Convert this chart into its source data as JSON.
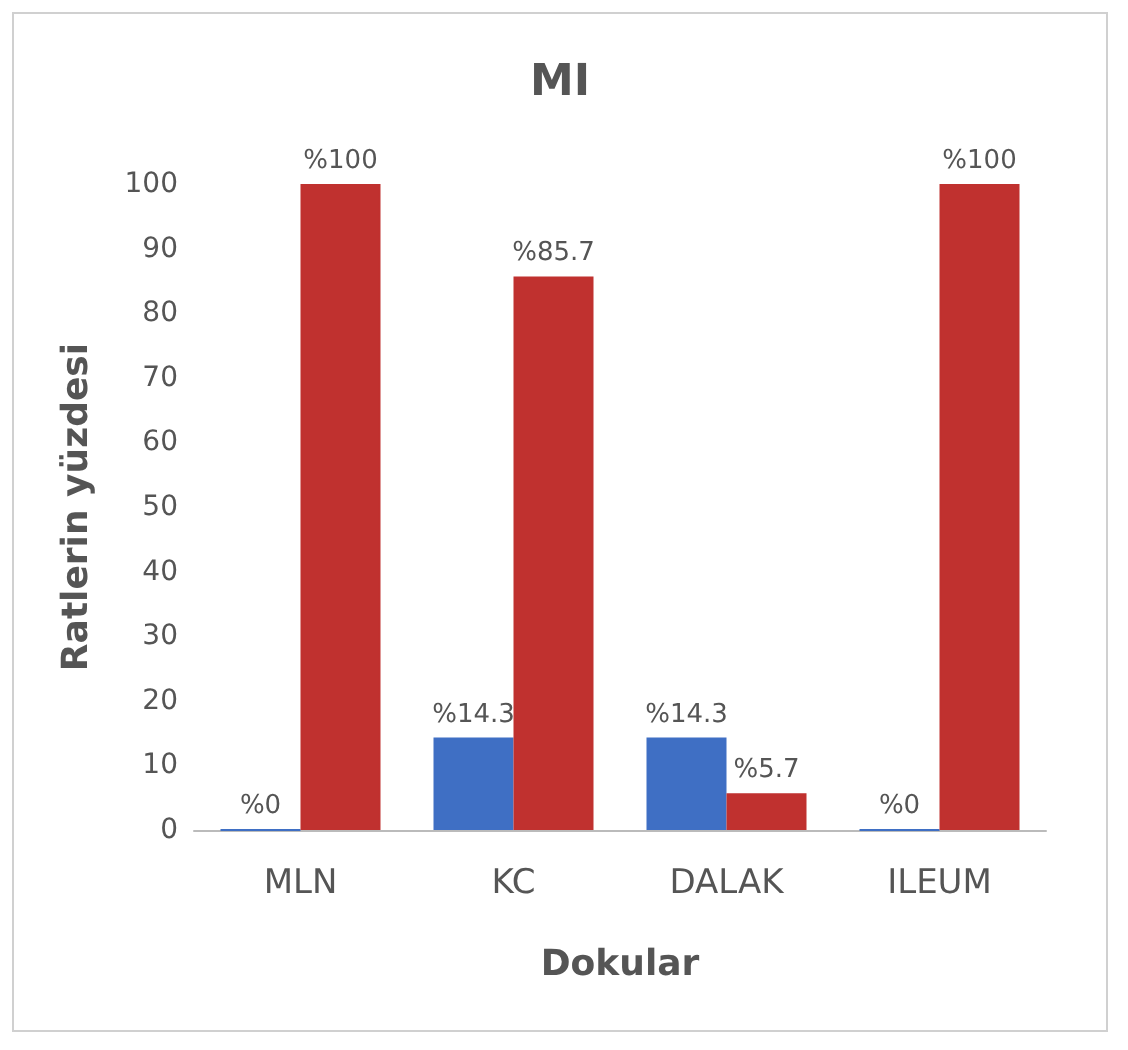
{
  "chart_data": {
    "type": "bar",
    "title": "MI",
    "xlabel": "Dokular",
    "ylabel": "Ratlerin yüzdesi",
    "categories": [
      "MLN",
      "KC",
      "DALAK",
      "ILEUM"
    ],
    "series": [
      {
        "color": "#3f6fc4",
        "values": [
          0,
          14.3,
          14.3,
          0
        ],
        "value_labels": [
          "%0",
          "%14.3",
          "%14.3",
          "%0"
        ]
      },
      {
        "color": "#c0312f",
        "values": [
          100,
          85.7,
          5.7,
          100
        ],
        "value_labels": [
          "%100",
          "%85.7",
          "%5.7",
          "%100"
        ]
      }
    ],
    "ylim": [
      0,
      100
    ],
    "yticks": [
      0,
      10,
      20,
      30,
      40,
      50,
      60,
      70,
      80,
      90,
      100
    ],
    "grid": false
  }
}
